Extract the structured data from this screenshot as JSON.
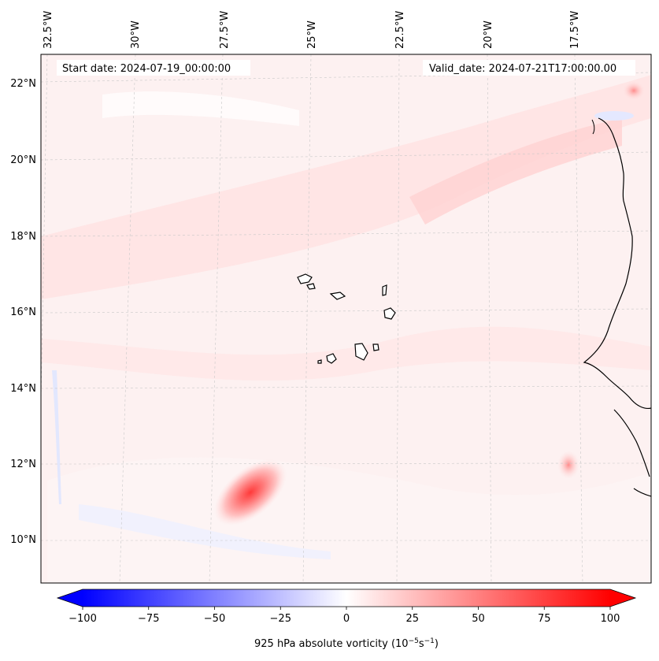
{
  "header": {
    "start_date": "Start date: 2024-07-19_00:00:00",
    "valid_date": "Valid_date: 2024-07-21T17:00:00.00"
  },
  "map": {
    "longitude_labels": [
      "32.5°W",
      "30°W",
      "27.5°W",
      "25°W",
      "22.5°W",
      "20°W",
      "17.5°W"
    ],
    "latitude_labels": [
      "22°N",
      "20°N",
      "18°N",
      "16°N",
      "14°N",
      "12°N",
      "10°N"
    ],
    "field": "925 hPa absolute vorticity",
    "feature_colors": {
      "coastline": "#000000",
      "gridline": "#c8c8c8",
      "positive": "#ff0000",
      "negative": "#0000ff"
    }
  },
  "colorbar": {
    "tick_labels": [
      "−100",
      "−75",
      "−50",
      "−25",
      "0",
      "25",
      "50",
      "75",
      "100"
    ],
    "label_main": "925 hPa absolute vorticity (10",
    "label_exp1": "−5",
    "label_mid": "s",
    "label_exp2": "−1",
    "label_end": ")",
    "min": -100,
    "max": 100
  }
}
